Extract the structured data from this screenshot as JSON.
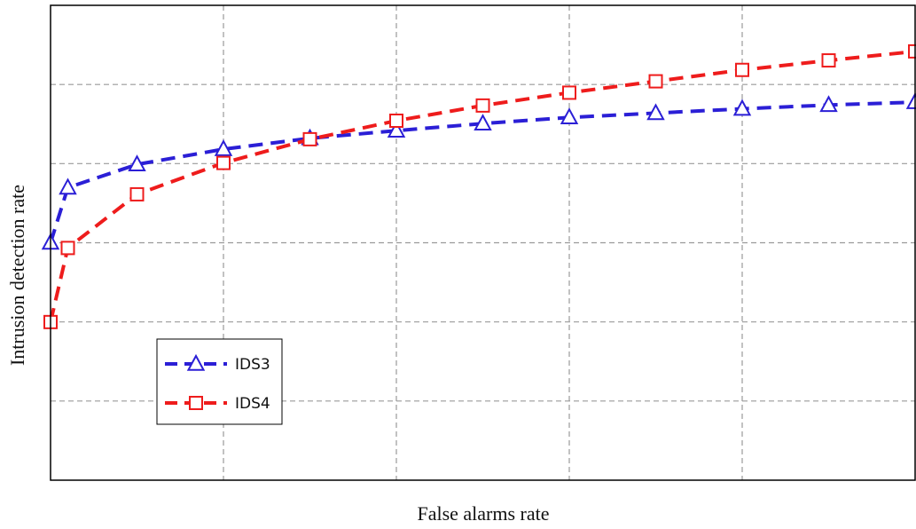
{
  "chart_data": {
    "type": "line",
    "title": "",
    "xlabel": "False alarms rate",
    "ylabel": "Intrusion detection rate",
    "xlim": [
      0,
      1
    ],
    "ylim": [
      0,
      1
    ],
    "grid": true,
    "legend_position": "bottom-left",
    "series": [
      {
        "name": "IDS3",
        "color": "#2b1fd6",
        "marker": "triangle",
        "x": [
          0,
          0.02,
          0.1,
          0.2,
          0.3,
          0.4,
          0.5,
          0.6,
          0.7,
          0.8,
          0.9,
          1.0
        ],
        "y": [
          0.5,
          0.616,
          0.665,
          0.697,
          0.72,
          0.736,
          0.751,
          0.764,
          0.773,
          0.782,
          0.79,
          0.796
        ]
      },
      {
        "name": "IDS4",
        "color": "#ee1c1c",
        "marker": "square",
        "x": [
          0,
          0.02,
          0.1,
          0.2,
          0.3,
          0.4,
          0.5,
          0.6,
          0.7,
          0.8,
          0.9,
          1.0
        ],
        "y": [
          0.333,
          0.489,
          0.602,
          0.668,
          0.718,
          0.757,
          0.789,
          0.816,
          0.84,
          0.864,
          0.884,
          0.903
        ]
      }
    ]
  }
}
